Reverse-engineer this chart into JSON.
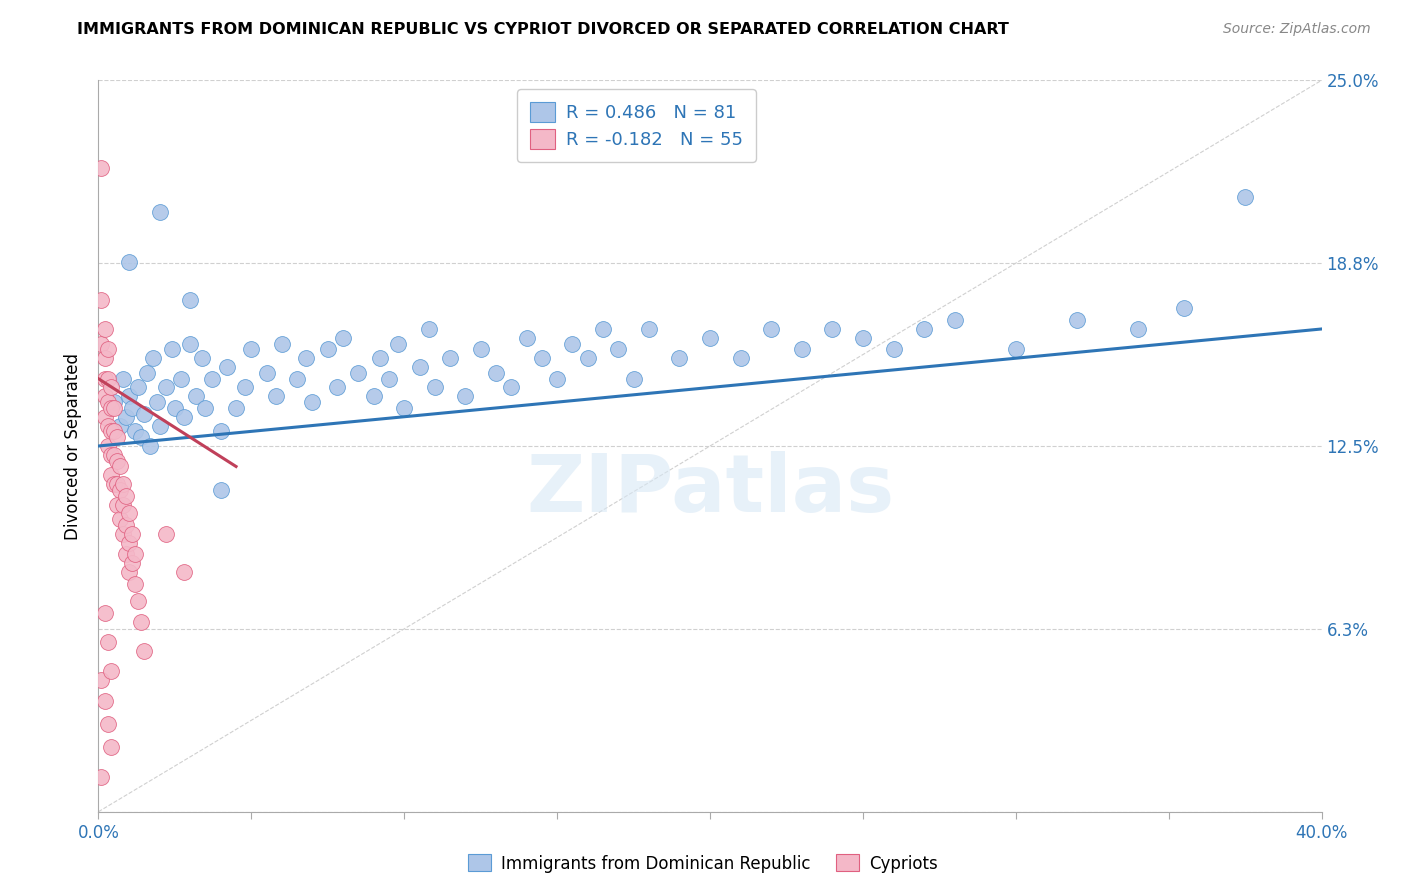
{
  "title": "IMMIGRANTS FROM DOMINICAN REPUBLIC VS CYPRIOT DIVORCED OR SEPARATED CORRELATION CHART",
  "source": "Source: ZipAtlas.com",
  "ylabel": "Divorced or Separated",
  "watermark": "ZIPatlas",
  "xmin": 0.0,
  "xmax": 0.4,
  "ymin": 0.0,
  "ymax": 0.25,
  "ytick_vals": [
    0.0,
    0.0625,
    0.125,
    0.1875,
    0.25
  ],
  "ytick_labels_right": [
    "",
    "6.3%",
    "12.5%",
    "18.8%",
    "25.0%"
  ],
  "xtick_vals": [
    0.0,
    0.05,
    0.1,
    0.15,
    0.2,
    0.25,
    0.3,
    0.35,
    0.4
  ],
  "xtick_labels": [
    "0.0%",
    "",
    "",
    "",
    "",
    "",
    "",
    "",
    "40.0%"
  ],
  "blue_R": "0.486",
  "blue_N": "81",
  "pink_R": "-0.182",
  "pink_N": "55",
  "blue_color": "#aec6e8",
  "blue_edge_color": "#5b9bd5",
  "blue_line_color": "#2e75b6",
  "pink_color": "#f4b8c8",
  "pink_edge_color": "#e06080",
  "pink_line_color": "#c0405a",
  "diagonal_color": "#d0d0d0",
  "grid_color": "#d0d0d0",
  "axis_label_color": "#2e75b6",
  "blue_line_start_x": 0.0,
  "blue_line_start_y": 0.125,
  "blue_line_end_x": 0.4,
  "blue_line_end_y": 0.165,
  "pink_line_start_x": 0.0,
  "pink_line_start_y": 0.148,
  "pink_line_end_x": 0.045,
  "pink_line_end_y": 0.118,
  "blue_scatter_x": [
    0.005,
    0.007,
    0.008,
    0.009,
    0.01,
    0.011,
    0.012,
    0.013,
    0.014,
    0.015,
    0.016,
    0.017,
    0.018,
    0.019,
    0.02,
    0.022,
    0.024,
    0.025,
    0.027,
    0.028,
    0.03,
    0.032,
    0.034,
    0.035,
    0.037,
    0.04,
    0.042,
    0.045,
    0.048,
    0.05,
    0.055,
    0.058,
    0.06,
    0.065,
    0.068,
    0.07,
    0.075,
    0.078,
    0.08,
    0.085,
    0.09,
    0.092,
    0.095,
    0.098,
    0.1,
    0.105,
    0.108,
    0.11,
    0.115,
    0.12,
    0.125,
    0.13,
    0.135,
    0.14,
    0.145,
    0.15,
    0.155,
    0.16,
    0.165,
    0.17,
    0.175,
    0.18,
    0.19,
    0.2,
    0.21,
    0.22,
    0.23,
    0.24,
    0.25,
    0.26,
    0.27,
    0.28,
    0.3,
    0.32,
    0.34,
    0.355,
    0.375,
    0.01,
    0.02,
    0.03,
    0.04
  ],
  "blue_scatter_y": [
    0.14,
    0.132,
    0.148,
    0.135,
    0.142,
    0.138,
    0.13,
    0.145,
    0.128,
    0.136,
    0.15,
    0.125,
    0.155,
    0.14,
    0.132,
    0.145,
    0.158,
    0.138,
    0.148,
    0.135,
    0.16,
    0.142,
    0.155,
    0.138,
    0.148,
    0.13,
    0.152,
    0.138,
    0.145,
    0.158,
    0.15,
    0.142,
    0.16,
    0.148,
    0.155,
    0.14,
    0.158,
    0.145,
    0.162,
    0.15,
    0.142,
    0.155,
    0.148,
    0.16,
    0.138,
    0.152,
    0.165,
    0.145,
    0.155,
    0.142,
    0.158,
    0.15,
    0.145,
    0.162,
    0.155,
    0.148,
    0.16,
    0.155,
    0.165,
    0.158,
    0.148,
    0.165,
    0.155,
    0.162,
    0.155,
    0.165,
    0.158,
    0.165,
    0.162,
    0.158,
    0.165,
    0.168,
    0.158,
    0.168,
    0.165,
    0.172,
    0.21,
    0.188,
    0.205,
    0.175,
    0.11
  ],
  "pink_scatter_x": [
    0.001,
    0.001,
    0.001,
    0.002,
    0.002,
    0.002,
    0.002,
    0.002,
    0.003,
    0.003,
    0.003,
    0.003,
    0.003,
    0.004,
    0.004,
    0.004,
    0.004,
    0.004,
    0.005,
    0.005,
    0.005,
    0.005,
    0.006,
    0.006,
    0.006,
    0.006,
    0.007,
    0.007,
    0.007,
    0.008,
    0.008,
    0.008,
    0.009,
    0.009,
    0.009,
    0.01,
    0.01,
    0.01,
    0.011,
    0.011,
    0.012,
    0.012,
    0.013,
    0.014,
    0.015,
    0.001,
    0.002,
    0.003,
    0.004,
    0.001,
    0.022,
    0.028,
    0.002,
    0.003,
    0.004
  ],
  "pink_scatter_y": [
    0.22,
    0.175,
    0.16,
    0.165,
    0.155,
    0.148,
    0.142,
    0.135,
    0.158,
    0.148,
    0.14,
    0.132,
    0.125,
    0.145,
    0.138,
    0.13,
    0.122,
    0.115,
    0.138,
    0.13,
    0.122,
    0.112,
    0.128,
    0.12,
    0.112,
    0.105,
    0.118,
    0.11,
    0.1,
    0.112,
    0.105,
    0.095,
    0.108,
    0.098,
    0.088,
    0.102,
    0.092,
    0.082,
    0.095,
    0.085,
    0.088,
    0.078,
    0.072,
    0.065,
    0.055,
    0.045,
    0.038,
    0.03,
    0.022,
    0.012,
    0.095,
    0.082,
    0.068,
    0.058,
    0.048
  ]
}
